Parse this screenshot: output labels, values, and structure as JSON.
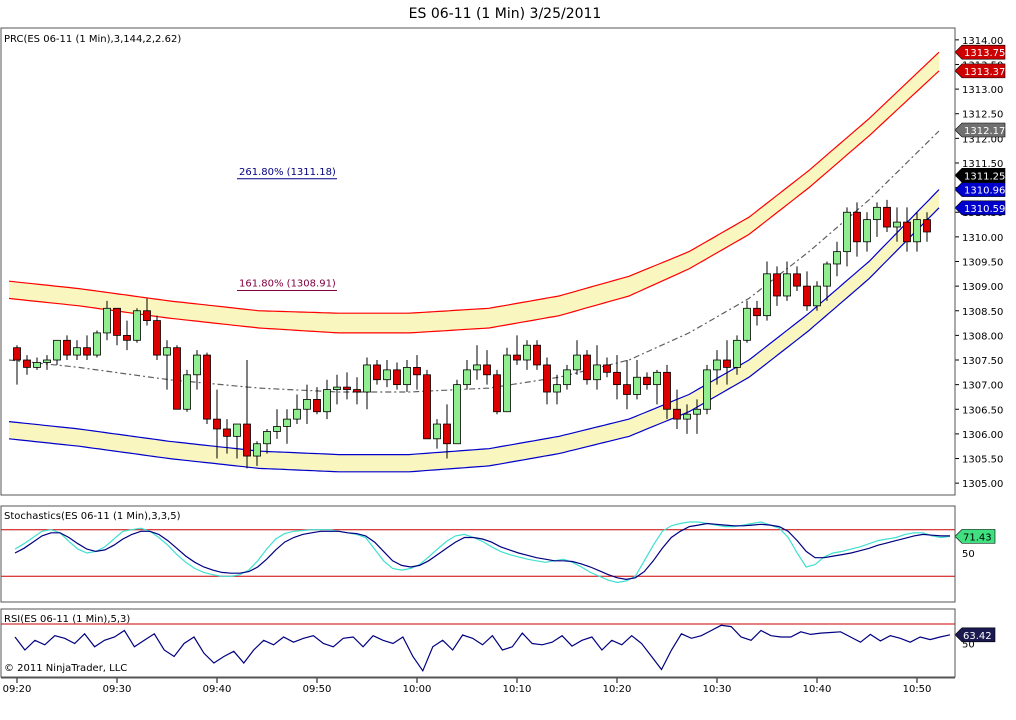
{
  "window": {
    "title": "ES 06-11 (1 Min)  3/25/2011"
  },
  "copyright": "© 2011 NinjaTrader, LLC",
  "colors": {
    "up_candle": "#90EE90",
    "down_candle": "#DD0000",
    "upper_band": "#FF0000",
    "lower_band": "#0000CC",
    "band_fill": "#FAF6C0",
    "regression": "#606060",
    "stoch_k": "#40E0D0",
    "stoch_d": "#000080",
    "rsi_line": "#000080",
    "level_line": "#CC0000"
  },
  "chart_data": [
    {
      "type": "candlestick",
      "panel": "price",
      "indicator_label": "PRC(ES 06-11 (1 Min),3,144,2,2.62)",
      "ylim": [
        1304.8,
        1314.2
      ],
      "y_ticks": [
        "1305.00",
        "1305.50",
        "1306.00",
        "1306.50",
        "1307.00",
        "1307.50",
        "1308.00",
        "1308.50",
        "1309.00",
        "1309.50",
        "1310.00",
        "1310.50",
        "1311.00",
        "1311.50",
        "1312.00",
        "1312.50",
        "1313.00",
        "1313.50",
        "1314.00"
      ],
      "x_ticks": [
        {
          "label": "09:20",
          "minute": 0
        },
        {
          "label": "09:30",
          "minute": 10
        },
        {
          "label": "09:40",
          "minute": 20
        },
        {
          "label": "09:50",
          "minute": 30
        },
        {
          "label": "10:00",
          "minute": 40
        },
        {
          "label": "10:10",
          "minute": 50
        },
        {
          "label": "10:20",
          "minute": 60
        },
        {
          "label": "10:30",
          "minute": 70
        },
        {
          "label": "10:40",
          "minute": 80
        },
        {
          "label": "10:50",
          "minute": 90
        }
      ],
      "price_markers": [
        {
          "value": "1313.75",
          "color": "#CC0000"
        },
        {
          "value": "1313.37",
          "color": "#CC0000"
        },
        {
          "value": "1312.17",
          "color": "#707070"
        },
        {
          "value": "1311.25",
          "color": "#000000"
        },
        {
          "value": "1310.96",
          "color": "#0000CC"
        },
        {
          "value": "1310.59",
          "color": "#0000CC"
        }
      ],
      "fib_labels": [
        {
          "text": "261.80% (1311.18)",
          "price": 1311.18,
          "minute_start": 22,
          "minute_end": 32,
          "color": "#000080"
        },
        {
          "text": "161.80% (1308.91)",
          "price": 1308.91,
          "minute_start": 22,
          "minute_end": 32,
          "color": "#800040"
        }
      ],
      "regression_channel": {
        "x": [
          0,
          7,
          16,
          25,
          33,
          40,
          48,
          55,
          62,
          68,
          74,
          80,
          86,
          93
        ],
        "center": [
          1307.5,
          1307.35,
          1307.1,
          1306.93,
          1306.85,
          1306.85,
          1306.93,
          1307.15,
          1307.5,
          1308.05,
          1308.75,
          1309.7,
          1310.75,
          1312.15
        ],
        "upper_outer": [
          1309.1,
          1308.95,
          1308.7,
          1308.5,
          1308.45,
          1308.45,
          1308.55,
          1308.8,
          1309.2,
          1309.7,
          1310.4,
          1311.35,
          1312.4,
          1313.75
        ],
        "upper_inner": [
          1308.75,
          1308.6,
          1308.35,
          1308.15,
          1308.05,
          1308.05,
          1308.15,
          1308.4,
          1308.8,
          1309.35,
          1310.05,
          1311.0,
          1312.05,
          1313.37
        ],
        "lower_inner": [
          1306.25,
          1306.1,
          1305.85,
          1305.65,
          1305.58,
          1305.58,
          1305.7,
          1305.95,
          1306.3,
          1306.8,
          1307.5,
          1308.45,
          1309.5,
          1310.96
        ],
        "lower_outer": [
          1305.9,
          1305.75,
          1305.5,
          1305.3,
          1305.23,
          1305.23,
          1305.35,
          1305.6,
          1305.95,
          1306.45,
          1307.15,
          1308.1,
          1309.15,
          1310.59
        ]
      },
      "candles": [
        [
          1307.75,
          1307.8,
          1307.0,
          1307.5
        ],
        [
          1307.5,
          1307.6,
          1307.2,
          1307.35
        ],
        [
          1307.35,
          1307.55,
          1307.3,
          1307.45
        ],
        [
          1307.45,
          1307.6,
          1307.3,
          1307.5
        ],
        [
          1307.5,
          1307.9,
          1307.4,
          1307.9
        ],
        [
          1307.9,
          1308.0,
          1307.5,
          1307.6
        ],
        [
          1307.6,
          1307.9,
          1307.5,
          1307.75
        ],
        [
          1307.75,
          1308.0,
          1307.5,
          1307.6
        ],
        [
          1307.6,
          1308.1,
          1307.55,
          1308.05
        ],
        [
          1308.05,
          1308.7,
          1307.9,
          1308.55
        ],
        [
          1308.55,
          1308.55,
          1307.8,
          1308.0
        ],
        [
          1308.0,
          1308.3,
          1307.7,
          1307.9
        ],
        [
          1307.9,
          1308.55,
          1307.85,
          1308.5
        ],
        [
          1308.5,
          1308.75,
          1308.2,
          1308.3
        ],
        [
          1308.3,
          1308.4,
          1307.5,
          1307.6
        ],
        [
          1307.6,
          1307.9,
          1306.9,
          1307.75
        ],
        [
          1307.75,
          1307.8,
          1306.5,
          1306.5
        ],
        [
          1306.5,
          1307.3,
          1306.45,
          1307.2
        ],
        [
          1307.2,
          1307.7,
          1306.9,
          1307.6
        ],
        [
          1307.6,
          1307.65,
          1306.2,
          1306.3
        ],
        [
          1306.3,
          1306.9,
          1305.5,
          1306.1
        ],
        [
          1306.1,
          1306.3,
          1305.6,
          1305.95
        ],
        [
          1305.95,
          1306.2,
          1305.5,
          1306.2
        ],
        [
          1306.2,
          1307.5,
          1305.3,
          1305.55
        ],
        [
          1305.55,
          1305.85,
          1305.35,
          1305.8
        ],
        [
          1305.8,
          1306.1,
          1305.6,
          1306.05
        ],
        [
          1306.05,
          1306.5,
          1305.9,
          1306.15
        ],
        [
          1306.15,
          1306.5,
          1305.8,
          1306.3
        ],
        [
          1306.3,
          1306.8,
          1306.2,
          1306.5
        ],
        [
          1306.5,
          1307.0,
          1306.2,
          1306.7
        ],
        [
          1306.7,
          1306.95,
          1306.4,
          1306.45
        ],
        [
          1306.45,
          1307.1,
          1306.3,
          1306.9
        ],
        [
          1306.9,
          1307.2,
          1306.6,
          1306.95
        ],
        [
          1306.95,
          1307.25,
          1306.7,
          1306.9
        ],
        [
          1306.9,
          1307.15,
          1306.6,
          1306.85
        ],
        [
          1306.85,
          1307.55,
          1306.5,
          1307.4
        ],
        [
          1307.4,
          1307.5,
          1307.0,
          1307.1
        ],
        [
          1307.1,
          1307.5,
          1306.95,
          1307.3
        ],
        [
          1307.3,
          1307.45,
          1306.9,
          1307.0
        ],
        [
          1307.0,
          1307.5,
          1306.85,
          1307.35
        ],
        [
          1307.35,
          1307.6,
          1306.9,
          1307.2
        ],
        [
          1307.2,
          1307.3,
          1305.9,
          1305.9
        ],
        [
          1305.9,
          1306.3,
          1305.7,
          1306.2
        ],
        [
          1306.2,
          1306.6,
          1305.5,
          1305.8
        ],
        [
          1305.8,
          1307.1,
          1305.8,
          1307.0
        ],
        [
          1307.0,
          1307.5,
          1306.9,
          1307.3
        ],
        [
          1307.3,
          1307.8,
          1307.1,
          1307.4
        ],
        [
          1307.4,
          1307.7,
          1307.0,
          1307.2
        ],
        [
          1307.2,
          1307.3,
          1306.4,
          1306.45
        ],
        [
          1306.45,
          1307.75,
          1306.45,
          1307.6
        ],
        [
          1307.6,
          1308.0,
          1307.4,
          1307.5
        ],
        [
          1307.5,
          1307.9,
          1307.3,
          1307.8
        ],
        [
          1307.8,
          1307.9,
          1307.3,
          1307.4
        ],
        [
          1307.4,
          1307.55,
          1306.6,
          1306.85
        ],
        [
          1306.85,
          1307.2,
          1306.6,
          1307.0
        ],
        [
          1307.0,
          1307.4,
          1306.9,
          1307.3
        ],
        [
          1307.3,
          1307.9,
          1307.2,
          1307.6
        ],
        [
          1307.6,
          1307.7,
          1307.0,
          1307.1
        ],
        [
          1307.1,
          1307.8,
          1306.9,
          1307.4
        ],
        [
          1307.4,
          1307.55,
          1307.15,
          1307.25
        ],
        [
          1307.25,
          1307.6,
          1306.7,
          1307.0
        ],
        [
          1307.0,
          1307.5,
          1306.5,
          1306.8
        ],
        [
          1306.8,
          1307.5,
          1306.7,
          1307.15
        ],
        [
          1307.15,
          1307.25,
          1306.9,
          1307.0
        ],
        [
          1307.0,
          1307.3,
          1306.6,
          1307.25
        ],
        [
          1307.25,
          1307.4,
          1306.3,
          1306.5
        ],
        [
          1306.5,
          1306.9,
          1306.1,
          1306.3
        ],
        [
          1306.3,
          1306.6,
          1306.0,
          1306.4
        ],
        [
          1306.4,
          1306.7,
          1306.0,
          1306.5
        ],
        [
          1306.5,
          1307.4,
          1306.4,
          1307.3
        ],
        [
          1307.3,
          1307.7,
          1307.0,
          1307.5
        ],
        [
          1307.5,
          1307.9,
          1307.0,
          1307.35
        ],
        [
          1307.35,
          1308.0,
          1307.2,
          1307.9
        ],
        [
          1307.9,
          1308.7,
          1307.85,
          1308.55
        ],
        [
          1308.55,
          1308.7,
          1308.2,
          1308.4
        ],
        [
          1308.4,
          1309.5,
          1308.3,
          1309.25
        ],
        [
          1309.25,
          1309.4,
          1308.6,
          1308.8
        ],
        [
          1308.8,
          1309.5,
          1308.7,
          1309.25
        ],
        [
          1309.25,
          1309.4,
          1308.9,
          1309.0
        ],
        [
          1309.0,
          1309.3,
          1308.5,
          1308.6
        ],
        [
          1308.6,
          1309.1,
          1308.5,
          1309.0
        ],
        [
          1309.0,
          1309.5,
          1308.7,
          1309.45
        ],
        [
          1309.45,
          1309.9,
          1309.2,
          1309.7
        ],
        [
          1309.7,
          1310.6,
          1309.4,
          1310.5
        ],
        [
          1310.5,
          1310.7,
          1309.6,
          1309.9
        ],
        [
          1309.9,
          1310.5,
          1309.7,
          1310.35
        ],
        [
          1310.35,
          1310.7,
          1310.0,
          1310.6
        ],
        [
          1310.6,
          1310.75,
          1310.1,
          1310.2
        ],
        [
          1310.2,
          1310.6,
          1309.9,
          1310.3
        ],
        [
          1310.3,
          1310.6,
          1309.7,
          1309.9
        ],
        [
          1309.9,
          1310.5,
          1309.7,
          1310.35
        ],
        [
          1310.35,
          1310.5,
          1309.9,
          1310.1
        ]
      ]
    },
    {
      "type": "line",
      "panel": "stochastics",
      "indicator_label": "Stochastics(ES 06-11 (1 Min),3,3,5)",
      "ylim": [
        -8,
        108
      ],
      "levels": [
        80,
        20
      ],
      "y_ticks": [
        "50"
      ],
      "current_value": "71.43",
      "series": [
        {
          "role": "K",
          "values": [
            55,
            62,
            70,
            78,
            80,
            76,
            65,
            55,
            50,
            52,
            58,
            68,
            78,
            80,
            82,
            78,
            70,
            60,
            48,
            38,
            30,
            25,
            22,
            20,
            20,
            22,
            28,
            40,
            55,
            68,
            75,
            78,
            79,
            80,
            80,
            80,
            78,
            76,
            74,
            70,
            55,
            40,
            30,
            28,
            30,
            35,
            45,
            55,
            65,
            72,
            74,
            70,
            65,
            58,
            52,
            48,
            45,
            42,
            40,
            38,
            40,
            42,
            38,
            32,
            25,
            20,
            15,
            12,
            14,
            20,
            40,
            60,
            78,
            85,
            88,
            90,
            90,
            88,
            86,
            84,
            84,
            86,
            88,
            90,
            86,
            82,
            70,
            50,
            32,
            35,
            45,
            50,
            52,
            55,
            58,
            62,
            66,
            68,
            70,
            74,
            76,
            76,
            72,
            70,
            71.43
          ]
        },
        {
          "role": "D",
          "values": [
            50,
            56,
            64,
            72,
            76,
            76,
            70,
            62,
            55,
            52,
            54,
            60,
            68,
            74,
            78,
            78,
            74,
            66,
            56,
            46,
            38,
            32,
            28,
            25,
            24,
            24,
            26,
            32,
            42,
            54,
            64,
            70,
            74,
            76,
            78,
            78,
            78,
            76,
            75,
            72,
            64,
            52,
            40,
            34,
            32,
            34,
            40,
            48,
            56,
            64,
            70,
            70,
            68,
            64,
            58,
            54,
            50,
            47,
            44,
            42,
            40,
            40,
            39,
            36,
            32,
            27,
            22,
            18,
            16,
            18,
            26,
            40,
            56,
            70,
            78,
            84,
            86,
            88,
            87,
            86,
            85,
            85,
            86,
            87,
            86,
            84,
            78,
            66,
            52,
            44,
            44,
            46,
            48,
            50,
            53,
            56,
            60,
            63,
            66,
            69,
            72,
            74,
            73,
            72,
            72
          ]
        }
      ]
    },
    {
      "type": "line",
      "panel": "rsi",
      "indicator_label": "RSI(ES 06-11 (1 Min),5,3)",
      "ylim": [
        0,
        100
      ],
      "levels": [
        80
      ],
      "y_ticks": [
        "50"
      ],
      "current_value": "63.42",
      "series": [
        {
          "role": "RSI",
          "values": [
            60,
            40,
            55,
            48,
            62,
            58,
            50,
            65,
            45,
            55,
            60,
            70,
            45,
            55,
            65,
            40,
            30,
            50,
            60,
            35,
            20,
            30,
            38,
            20,
            40,
            55,
            48,
            60,
            52,
            58,
            62,
            50,
            45,
            58,
            60,
            45,
            62,
            55,
            50,
            60,
            30,
            8,
            45,
            55,
            40,
            63,
            58,
            48,
            62,
            40,
            45,
            66,
            50,
            48,
            52,
            62,
            46,
            55,
            60,
            40,
            55,
            48,
            62,
            50,
            30,
            10,
            40,
            65,
            58,
            62,
            70,
            78,
            76,
            60,
            55,
            70,
            62,
            60,
            60,
            68,
            64,
            66,
            67,
            68,
            60,
            52,
            64,
            54,
            62,
            58,
            52,
            60,
            56,
            60,
            63.42
          ]
        }
      ]
    }
  ]
}
